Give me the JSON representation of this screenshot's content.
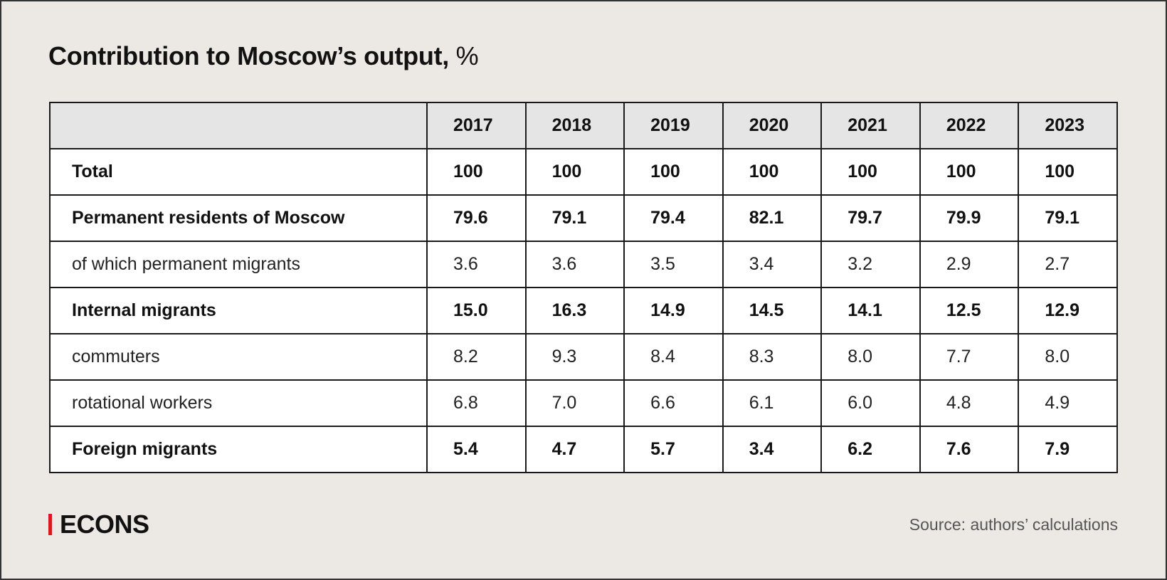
{
  "title": {
    "main": "Contribution to Moscow’s output,",
    "unit": "%"
  },
  "table": {
    "columns": [
      "",
      "2017",
      "2018",
      "2019",
      "2020",
      "2021",
      "2022",
      "2023"
    ],
    "rows": [
      {
        "label": "Total",
        "bold": true,
        "values": [
          "100",
          "100",
          "100",
          "100",
          "100",
          "100",
          "100"
        ]
      },
      {
        "label": "Permanent residents of Moscow",
        "bold": true,
        "values": [
          "79.6",
          "79.1",
          "79.4",
          "82.1",
          "79.7",
          "79.9",
          "79.1"
        ]
      },
      {
        "label": "of which permanent migrants",
        "bold": false,
        "values": [
          "3.6",
          "3.6",
          "3.5",
          "3.4",
          "3.2",
          "2.9",
          "2.7"
        ]
      },
      {
        "label": "Internal migrants",
        "bold": true,
        "values": [
          "15.0",
          "16.3",
          "14.9",
          "14.5",
          "14.1",
          "12.5",
          "12.9"
        ]
      },
      {
        "label": "commuters",
        "bold": false,
        "values": [
          "8.2",
          "9.3",
          "8.4",
          "8.3",
          "8.0",
          "7.7",
          "8.0"
        ]
      },
      {
        "label": "rotational workers",
        "bold": false,
        "values": [
          "6.8",
          "7.0",
          "6.6",
          "6.1",
          "6.0",
          "4.8",
          "4.9"
        ]
      },
      {
        "label": "Foreign migrants",
        "bold": true,
        "values": [
          "5.4",
          "4.7",
          "5.7",
          "3.4",
          "6.2",
          "7.6",
          "7.9"
        ]
      }
    ]
  },
  "footer": {
    "logo": "ECONS",
    "source": "Source: authors’ calculations"
  },
  "colors": {
    "background": "#ece9e4",
    "header_bg": "#e5e5e5",
    "brand_red": "#d71920"
  }
}
